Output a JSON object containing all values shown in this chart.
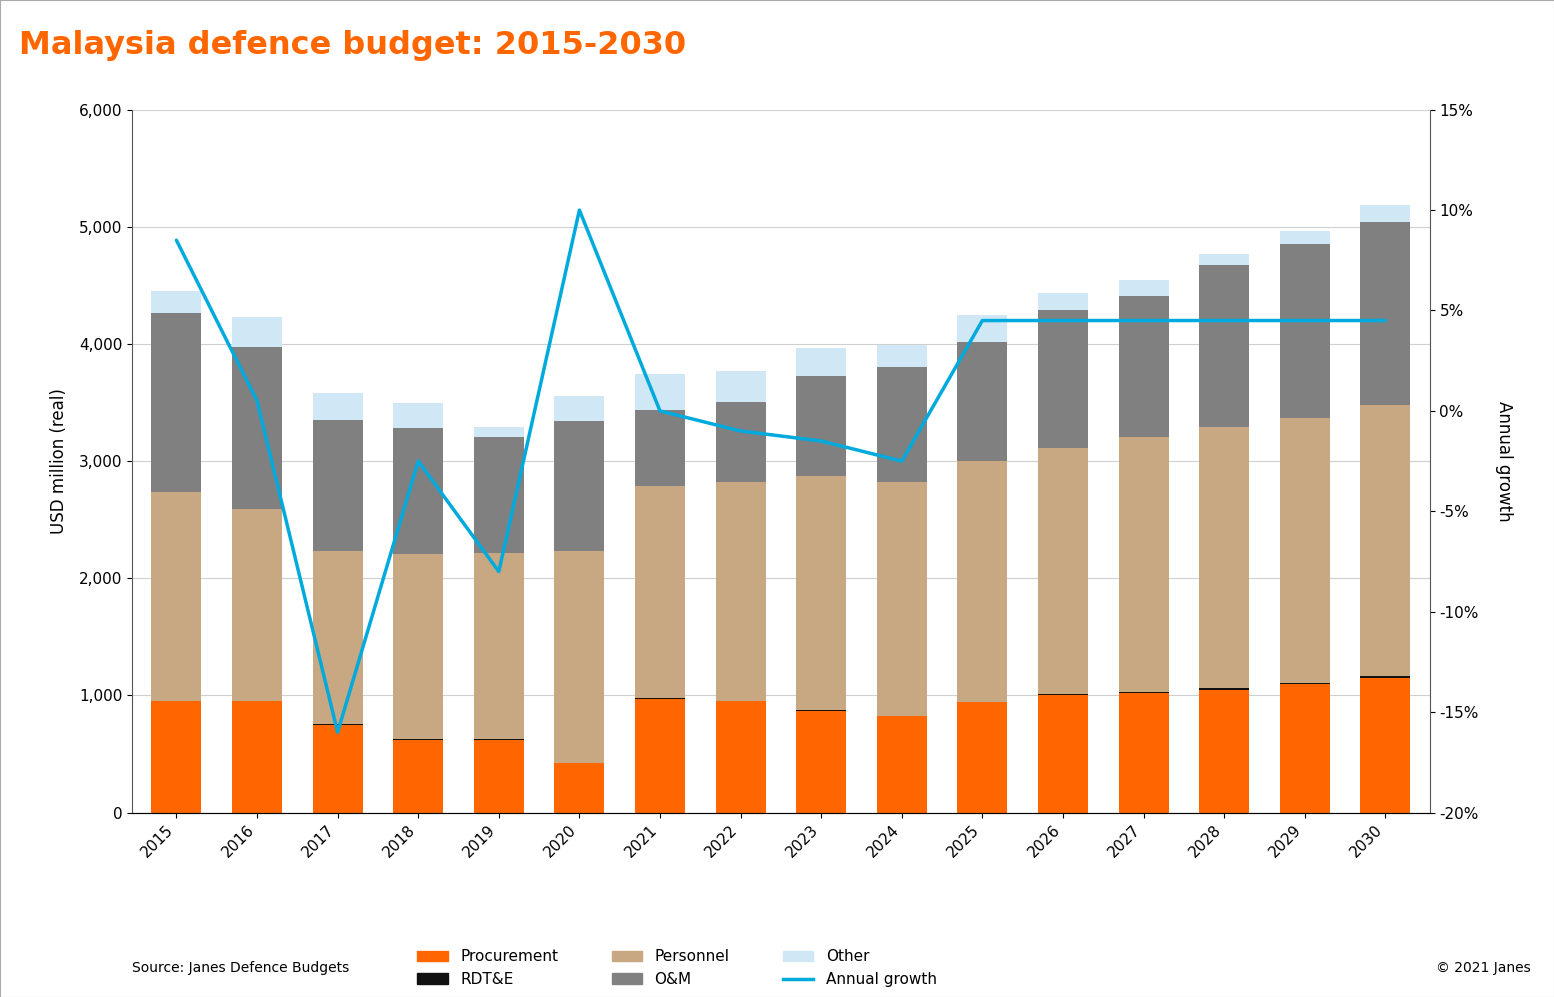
{
  "title": "Malaysia defence budget: 2015-2030",
  "title_color": "#FF6600",
  "title_bg": "#111111",
  "years": [
    2015,
    2016,
    2017,
    2018,
    2019,
    2020,
    2021,
    2022,
    2023,
    2024,
    2025,
    2026,
    2027,
    2028,
    2029,
    2030
  ],
  "procurement": [
    950,
    950,
    750,
    620,
    620,
    420,
    970,
    950,
    870,
    820,
    940,
    1000,
    1020,
    1050,
    1100,
    1150
  ],
  "rdtae": [
    5,
    5,
    5,
    5,
    5,
    5,
    5,
    5,
    5,
    5,
    5,
    10,
    10,
    10,
    10,
    15
  ],
  "personnel": [
    1780,
    1640,
    1480,
    1580,
    1590,
    1810,
    1810,
    1870,
    2000,
    2000,
    2060,
    2100,
    2180,
    2230,
    2260,
    2310
  ],
  "om": [
    1530,
    1380,
    1120,
    1080,
    990,
    1110,
    650,
    680,
    850,
    980,
    1010,
    1180,
    1200,
    1380,
    1480,
    1570
  ],
  "other": [
    185,
    255,
    225,
    210,
    90,
    215,
    310,
    265,
    240,
    185,
    230,
    145,
    140,
    100,
    115,
    145
  ],
  "annual_growth": [
    8.5,
    0.5,
    -16.0,
    -2.5,
    -8.0,
    10.0,
    0.0,
    -1.0,
    -1.5,
    -2.5,
    4.5,
    4.5,
    4.5,
    4.5,
    4.5,
    4.5
  ],
  "procurement_color": "#FF6600",
  "rdtae_color": "#111111",
  "personnel_color": "#C8A882",
  "om_color": "#808080",
  "other_color": "#D0E8F5",
  "line_color": "#00AADD",
  "ylim_left": [
    0,
    6000
  ],
  "ylim_right": [
    -20,
    15
  ],
  "yticks_left": [
    0,
    1000,
    2000,
    3000,
    4000,
    5000,
    6000
  ],
  "yticks_right": [
    -20,
    -15,
    -10,
    -5,
    0,
    5,
    10,
    15
  ],
  "ylabel_left": "USD million (real)",
  "ylabel_right": "Annual growth",
  "source_text": "Source: Janes Defence Budgets",
  "copyright_text": "© 2021 Janes",
  "background_color": "#ffffff",
  "grid_color": "#d0d0d0"
}
